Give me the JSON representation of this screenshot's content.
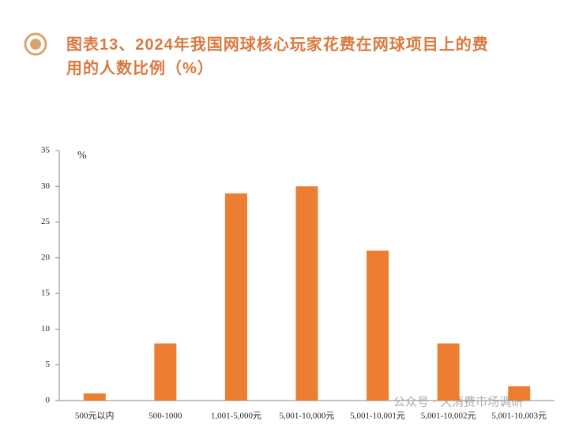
{
  "chart_data": {
    "type": "bar",
    "title": "图表13、2024年我国网球核心玩家花费在网球项目上的费用的人数比例（%）",
    "y_unit_label": "%",
    "watermark": "公众号 · 大消费市场调研",
    "categories": [
      "500元以内",
      "500-1000",
      "1,001-5,000元",
      "5,001-10,000元",
      "5,001-10,001元",
      "5,001-10,002元",
      "5,001-10,003元"
    ],
    "values": [
      1,
      8,
      29,
      30,
      21,
      8,
      2
    ],
    "color": "#ed7d31",
    "ylim": [
      0,
      35
    ],
    "yticks": [
      0,
      5,
      10,
      15,
      20,
      25,
      30,
      35
    ],
    "grid": false
  }
}
